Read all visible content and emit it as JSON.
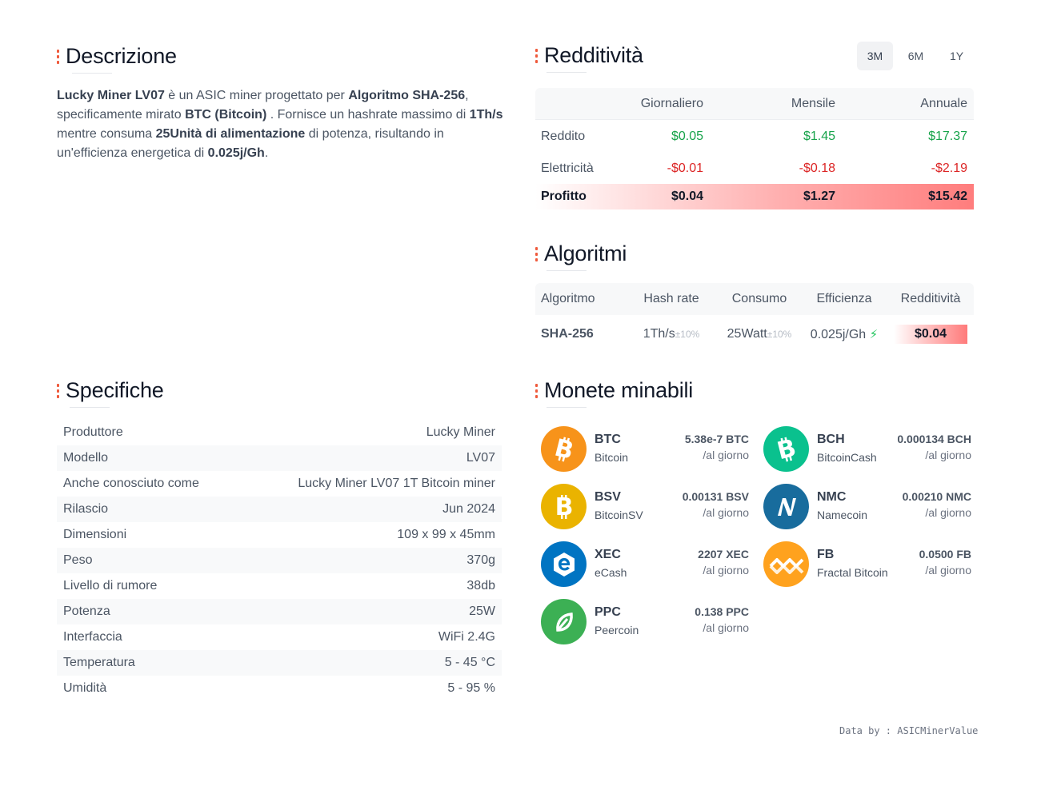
{
  "descrizione": {
    "title": "Descrizione",
    "model": "Lucky Miner LV07",
    "t1": " è un ASIC miner progettato per ",
    "algorithm": "Algoritmo SHA-256",
    "t2": ", specificamente mirato ",
    "coin": "BTC (Bitcoin)",
    "t3": " . Fornisce un hashrate massimo di ",
    "hashrate": "1Th/s",
    "t4": " mentre consuma ",
    "power": "25Unità di alimentazione",
    "t5": " di potenza, risultando in un'efficienza energetica di ",
    "efficiency": "0.025j/Gh",
    "t6": "."
  },
  "redditivita": {
    "title": "Redditività",
    "tabs": [
      "3M",
      "6M",
      "1Y"
    ],
    "active_tab": "3M",
    "headers": [
      "",
      "Giornaliero",
      "Mensile",
      "Annuale"
    ],
    "rows": [
      {
        "label": "Reddito",
        "values": [
          "$0.05",
          "$1.45",
          "$17.37"
        ]
      },
      {
        "label": "Elettricità",
        "values": [
          "-$0.01",
          "-$0.18",
          "-$2.19"
        ]
      },
      {
        "label": "Profitto",
        "values": [
          "$0.04",
          "$1.27",
          "$15.42"
        ]
      }
    ]
  },
  "algoritmi": {
    "title": "Algoritmi",
    "headers": [
      "Algoritmo",
      "Hash rate",
      "Consumo",
      "Efficienza",
      "Redditività"
    ],
    "row": {
      "name": "SHA-256",
      "hashrate": "1Th/s",
      "hashrate_tol": "±10%",
      "consumption": "25Watt",
      "consumption_tol": "±10%",
      "efficiency": "0.025j/Gh",
      "profit": "$0.04"
    }
  },
  "specifiche": {
    "title": "Specifiche",
    "rows": [
      {
        "label": "Produttore",
        "value": "Lucky Miner"
      },
      {
        "label": "Modello",
        "value": "LV07"
      },
      {
        "label": "Anche conosciuto come",
        "value": "Lucky Miner LV07 1T Bitcoin miner"
      },
      {
        "label": "Rilascio",
        "value": "Jun 2024"
      },
      {
        "label": "Dimensioni",
        "value": "109 x 99 x 45mm"
      },
      {
        "label": "Peso",
        "value": "370g"
      },
      {
        "label": "Livello di rumore",
        "value": "38db"
      },
      {
        "label": "Potenza",
        "value": "25W"
      },
      {
        "label": "Interfaccia",
        "value": "WiFi 2.4G"
      },
      {
        "label": "Temperatura",
        "value": "5 - 45 °C"
      },
      {
        "label": "Umidità",
        "value": "5 - 95 %"
      }
    ]
  },
  "monete": {
    "title": "Monete minabili",
    "per_day": "/al giorno",
    "coins": [
      {
        "symbol": "BTC",
        "name": "Bitcoin",
        "amount": "5.38e-7 BTC",
        "color": "#f7931a",
        "icon": "bitcoin-logo-icon"
      },
      {
        "symbol": "BCH",
        "name": "BitcoinCash",
        "amount": "0.000134 BCH",
        "color": "#0ac18e",
        "icon": "bitcoincash-logo-icon"
      },
      {
        "symbol": "BSV",
        "name": "BitcoinSV",
        "amount": "0.00131 BSV",
        "color": "#eab300",
        "icon": "bitcoinsv-logo-icon"
      },
      {
        "symbol": "NMC",
        "name": "Namecoin",
        "amount": "0.00210 NMC",
        "color": "#186c9d",
        "icon": "namecoin-logo-icon"
      },
      {
        "symbol": "XEC",
        "name": "eCash",
        "amount": "2207 XEC",
        "color": "#0074c2",
        "icon": "ecash-logo-icon"
      },
      {
        "symbol": "FB",
        "name": "Fractal Bitcoin",
        "amount": "0.0500 FB",
        "color": "#ffa21e",
        "icon": "fractal-bitcoin-logo-icon"
      },
      {
        "symbol": "PPC",
        "name": "Peercoin",
        "amount": "0.138 PPC",
        "color": "#3cb054",
        "icon": "peercoin-logo-icon"
      }
    ]
  },
  "credit": "Data by : ASICMinerValue"
}
